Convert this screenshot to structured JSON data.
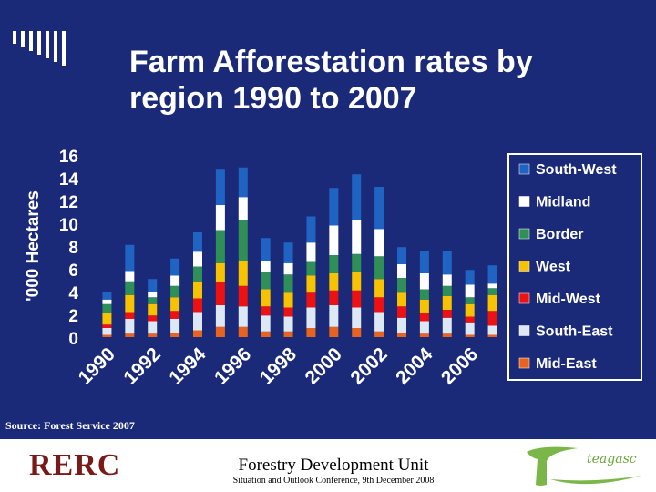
{
  "slide": {
    "title_line1": "Farm Afforestation rates by",
    "title_line2": "region 1990 to 2007",
    "source": "Source: Forest Service 2007",
    "footer_unit": "Forestry Development Unit",
    "footer_conference": "Situation and Outlook Conference, 9th December 2008",
    "logo_left_text": "RERC",
    "logo_right_text": "teagasc"
  },
  "chart_data": {
    "type": "bar",
    "stacked": true,
    "ylabel": "'000 Hectares",
    "xlabel": "",
    "ylim": [
      0,
      16
    ],
    "yticks": [
      0,
      2,
      4,
      6,
      8,
      10,
      12,
      14,
      16
    ],
    "grid": false,
    "legend_position": "right",
    "categories": [
      "1990",
      "1991",
      "1992",
      "1993",
      "1994",
      "1995",
      "1996",
      "1997",
      "1998",
      "1999",
      "2000",
      "2001",
      "2002",
      "2003",
      "2004",
      "2005",
      "2006",
      "2007"
    ],
    "xtick_labels": [
      "1990",
      "1992",
      "1994",
      "1996",
      "1998",
      "2000",
      "2002",
      "2004",
      "2006"
    ],
    "series": [
      {
        "name": "Mid-East",
        "color": "#e8641e",
        "values": [
          0.2,
          0.3,
          0.3,
          0.4,
          0.6,
          0.9,
          0.9,
          0.5,
          0.5,
          0.8,
          0.9,
          0.8,
          0.5,
          0.4,
          0.3,
          0.3,
          0.2,
          0.2
        ]
      },
      {
        "name": "South-East",
        "color": "#dde8f4",
        "values": [
          0.6,
          1.3,
          1.1,
          1.2,
          1.6,
          1.9,
          1.8,
          1.4,
          1.3,
          1.8,
          1.9,
          1.8,
          1.7,
          1.3,
          1.1,
          1.4,
          1.1,
          0.8
        ]
      },
      {
        "name": "Mid-West",
        "color": "#ee1111",
        "values": [
          0.3,
          0.6,
          0.5,
          0.7,
          1.2,
          2.0,
          1.8,
          0.8,
          0.8,
          1.3,
          1.3,
          1.5,
          1.3,
          1.0,
          0.7,
          0.7,
          0.5,
          1.3
        ]
      },
      {
        "name": "West",
        "color": "#f7c200",
        "values": [
          1.0,
          1.5,
          1.0,
          1.2,
          1.5,
          1.7,
          2.2,
          1.5,
          1.3,
          1.5,
          1.5,
          1.6,
          1.6,
          1.2,
          1.2,
          1.2,
          1.1,
          1.4
        ]
      },
      {
        "name": "Border",
        "color": "#2f8f57",
        "values": [
          0.8,
          1.2,
          0.6,
          1.0,
          1.3,
          2.9,
          3.6,
          1.5,
          1.6,
          1.2,
          1.6,
          1.6,
          2.0,
          1.3,
          0.9,
          0.9,
          0.6,
          0.6
        ]
      },
      {
        "name": "Midland",
        "color": "#ffffff",
        "values": [
          0.4,
          0.9,
          0.5,
          0.9,
          1.3,
          2.2,
          2.0,
          1.0,
          1.0,
          1.7,
          2.6,
          3.0,
          2.4,
          1.2,
          1.4,
          1.0,
          1.1,
          0.4
        ]
      },
      {
        "name": "South-West",
        "color": "#1f64c2",
        "values": [
          0.7,
          2.3,
          1.1,
          1.5,
          1.7,
          3.1,
          2.6,
          2.0,
          1.8,
          2.3,
          3.3,
          4.0,
          3.7,
          1.5,
          2.0,
          2.1,
          1.3,
          1.6
        ]
      }
    ]
  }
}
